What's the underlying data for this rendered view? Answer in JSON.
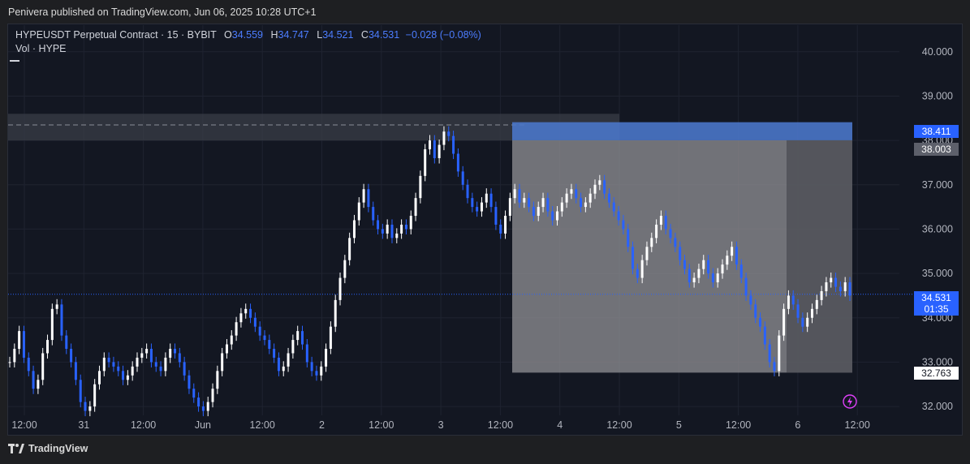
{
  "banner": "Penivera published on TradingView.com, Jun 06, 2025 10:28 UTC+1",
  "legend": {
    "symbol": "HYPEUSDT Perpetual Contract · 15 · BYBIT",
    "open_label": "O",
    "open": "34.559",
    "high_label": "H",
    "high": "34.747",
    "low_label": "L",
    "low": "34.521",
    "close_label": "C",
    "close": "34.531",
    "change": "−0.028 (−0.08%)",
    "volume": "Vol · HYPE"
  },
  "footer": {
    "brand": "TradingView",
    "logo_icon": "tradingview-logo-icon"
  },
  "badges": {
    "target": "38.411",
    "entry": "38.003",
    "current": "34.531",
    "countdown": "01:35",
    "stop": "32.763"
  },
  "colors": {
    "background": "#131722",
    "candle": "#ffffff",
    "candle_down": "#2962ff",
    "target_zone": "#4a76c8",
    "stop_zone": "#8a8a8e",
    "current_price": "#2962ff"
  },
  "chart_data": {
    "type": "candlestick",
    "title": "",
    "ylim": [
      31.8,
      40.6
    ],
    "y_ticks": [
      32,
      33,
      34,
      35,
      36,
      37,
      38,
      39,
      40
    ],
    "y_tick_labels": [
      "32.000",
      "33.000",
      "34.000",
      "35.000",
      "36.000",
      "37.000",
      "38.000",
      "39.000",
      "40.000"
    ],
    "x_tick_labels": [
      "12:00",
      "31",
      "12:00",
      "Jun",
      "12:00",
      "2",
      "12:00",
      "3",
      "12:00",
      "4",
      "12:00",
      "5",
      "12:00",
      "6",
      "12:00"
    ],
    "series": [
      {
        "values": [
          33.0,
          33.3,
          33.7,
          33.1,
          32.8,
          32.4,
          32.6,
          33.2,
          33.5,
          34.2,
          34.3,
          33.6,
          33.3,
          33.0,
          32.6,
          32.1,
          31.9,
          32.0,
          32.5,
          32.8,
          33.1,
          33.0,
          32.9,
          32.8,
          32.6,
          32.7,
          32.9,
          33.1,
          33.2,
          33.3,
          33.0,
          32.9,
          32.8,
          33.1,
          33.3,
          33.2,
          33.0,
          32.7,
          32.4,
          32.2,
          32.0,
          31.9,
          32.1,
          32.4,
          32.8,
          33.2,
          33.4,
          33.6,
          33.9,
          34.1,
          34.2,
          34.0,
          33.8,
          33.6,
          33.5,
          33.3,
          33.1,
          32.8,
          32.9,
          33.2,
          33.5,
          33.7,
          33.4,
          33.0,
          32.8,
          32.7,
          32.9,
          33.3,
          33.8,
          34.4,
          34.9,
          35.3,
          35.8,
          36.2,
          36.6,
          36.9,
          36.5,
          36.2,
          36.0,
          35.9,
          36.1,
          35.8,
          35.9,
          36.1,
          36.0,
          36.3,
          36.7,
          37.2,
          37.8,
          38.0,
          37.6,
          37.9,
          38.2,
          38.1,
          37.7,
          37.3,
          37.0,
          36.7,
          36.5,
          36.4,
          36.6,
          36.8,
          36.5,
          36.1,
          35.9,
          36.3,
          36.7,
          36.9,
          36.6,
          36.7,
          36.5,
          36.3,
          36.5,
          36.7,
          36.4,
          36.2,
          36.4,
          36.6,
          36.8,
          36.9,
          36.7,
          36.5,
          36.6,
          36.8,
          37.0,
          37.1,
          36.8,
          36.6,
          36.4,
          36.2,
          36.0,
          35.6,
          35.1,
          34.9,
          35.3,
          35.6,
          35.8,
          36.1,
          36.3,
          36.0,
          35.8,
          35.6,
          35.3,
          35.1,
          34.8,
          34.9,
          35.1,
          35.3,
          35.0,
          34.8,
          35.0,
          35.2,
          35.4,
          35.6,
          35.2,
          34.9,
          34.5,
          34.3,
          34.0,
          33.8,
          33.4,
          33.0,
          32.8,
          33.6,
          34.2,
          34.5,
          34.3,
          34.0,
          33.8,
          34.0,
          34.2,
          34.4,
          34.6,
          34.8,
          34.9,
          34.7,
          34.6,
          34.8,
          34.5
        ]
      }
    ],
    "annotations": [
      {
        "type": "long-position",
        "target": 38.411,
        "entry": 38.003,
        "stop": 32.763
      },
      {
        "type": "resistance-zone",
        "from": 38.0,
        "to": 38.6,
        "dashed_level": 38.35
      },
      {
        "type": "current-price-line",
        "value": 34.531
      }
    ]
  }
}
